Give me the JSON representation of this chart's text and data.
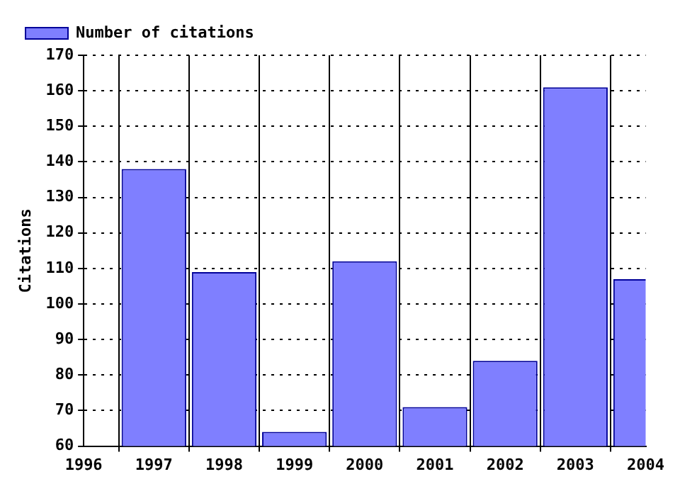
{
  "chart_data": {
    "type": "bar",
    "ylabel": "Citations",
    "x": [
      1997,
      1998,
      1999,
      2000,
      2001,
      2002,
      2003,
      2004
    ],
    "series": [
      {
        "name": "Number of citations",
        "color": "#7f7fff",
        "values": [
          138,
          109,
          64,
          112,
          71,
          84,
          161,
          107
        ]
      }
    ],
    "xlim": [
      1996,
      2004
    ],
    "xticks": [
      1996,
      1997,
      1998,
      1999,
      2000,
      2001,
      2002,
      2003,
      2004
    ],
    "ylim": [
      60,
      170
    ],
    "yticks": [
      60,
      70,
      80,
      90,
      100,
      110,
      120,
      130,
      140,
      150,
      160,
      170
    ],
    "grid": true,
    "legend": "top left"
  }
}
